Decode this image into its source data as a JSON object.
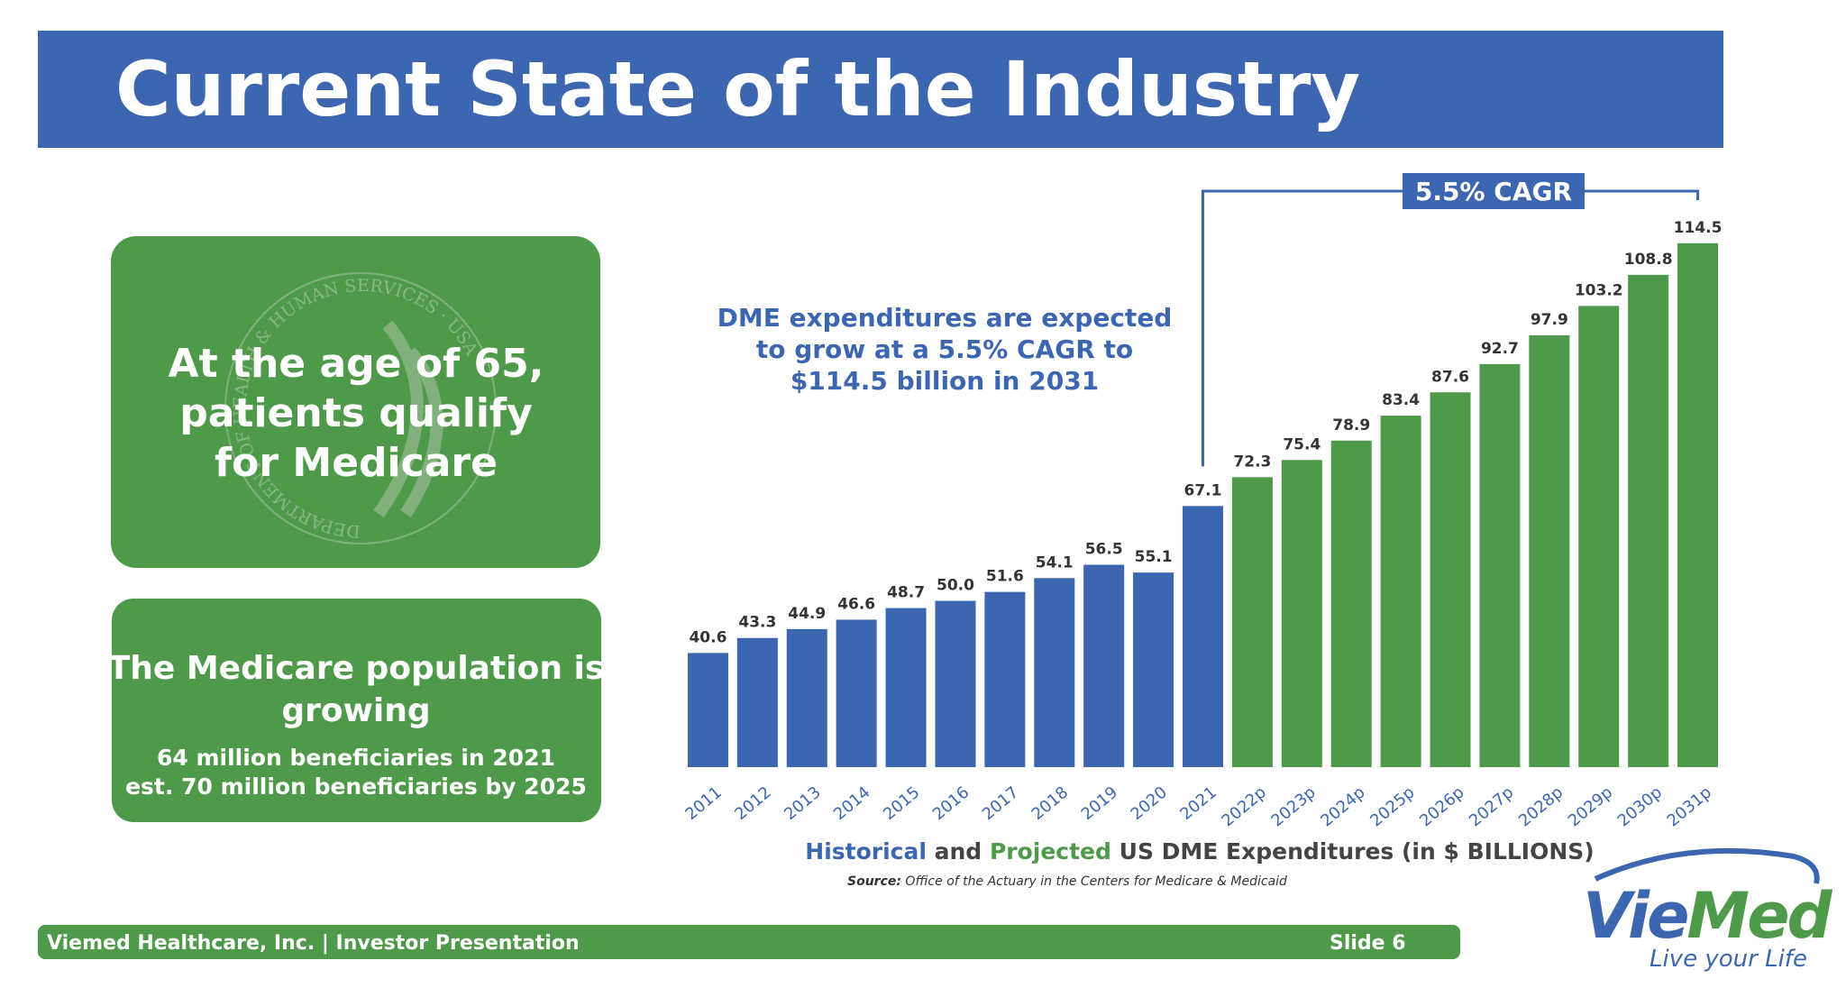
{
  "header": {
    "title": "Current State of the Industry"
  },
  "box_1": {
    "lines": [
      "At the age of 65,",
      "patients qualify",
      "for Medicare"
    ],
    "seal_text": "DEPARTMENT OF HEALTH & HUMAN SERVICES · USA"
  },
  "box_2": {
    "lines": [
      "The Medicare population is",
      "growing"
    ],
    "details": [
      "64 million beneficiaries in 2021",
      "est. 70 million beneficiaries by 2025"
    ]
  },
  "chart_data": {
    "type": "bar",
    "categories": [
      "2011",
      "2012",
      "2013",
      "2014",
      "2015",
      "2016",
      "2017",
      "2018",
      "2019",
      "2020",
      "2021",
      "2022p",
      "2023p",
      "2024p",
      "2025p",
      "2026p",
      "2027p",
      "2028p",
      "2029p",
      "2030p",
      "2031p"
    ],
    "values": [
      40.6,
      43.3,
      44.9,
      46.6,
      48.7,
      50.0,
      51.6,
      54.1,
      56.5,
      55.1,
      67.1,
      72.3,
      75.4,
      78.9,
      83.4,
      87.6,
      92.7,
      97.9,
      103.2,
      108.8,
      114.5
    ],
    "value_labels": [
      "40.6",
      "43.3",
      "44.9",
      "46.6",
      "48.7",
      "50.0",
      "51.6",
      "54.1",
      "56.5",
      "55.1",
      "67.1",
      "72.3",
      "75.4",
      "78.9",
      "83.4",
      "87.6",
      "92.7",
      "97.9",
      "103.2",
      "108.8",
      "114.5"
    ],
    "colors": [
      "#3d66b0",
      "#3d66b0",
      "#3d66b0",
      "#3d66b0",
      "#3d66b0",
      "#3d66b0",
      "#3d66b0",
      "#3d66b0",
      "#3d66b0",
      "#3d66b0",
      "#3d66b0",
      "#4f9a4a",
      "#4f9a4a",
      "#4f9a4a",
      "#4f9a4a",
      "#4f9a4a",
      "#4f9a4a",
      "#4f9a4a",
      "#4f9a4a",
      "#4f9a4a",
      "#4f9a4a"
    ],
    "ylim": [
      20,
      120
    ],
    "annotation": [
      "DME expenditures are expected",
      "to grow at a 5.5% CAGR to",
      "$114.5 billion in 2031"
    ],
    "cagr_label": "5.5% CAGR",
    "caption": {
      "historical": "Historical",
      "and": "and",
      "projected": "Projected",
      "rest": "US DME Expenditures (in $ BILLIONS)"
    },
    "source_label": "Source:",
    "source": "Office of the Actuary in the Centers for Medicare & Medicaid"
  },
  "footer": {
    "left": "Viemed Healthcare, Inc. | Investor Presentation",
    "right": "Slide 6"
  },
  "logo": {
    "part_1": "Vie",
    "part_2": "Med",
    "tagline": "Live your Life"
  }
}
